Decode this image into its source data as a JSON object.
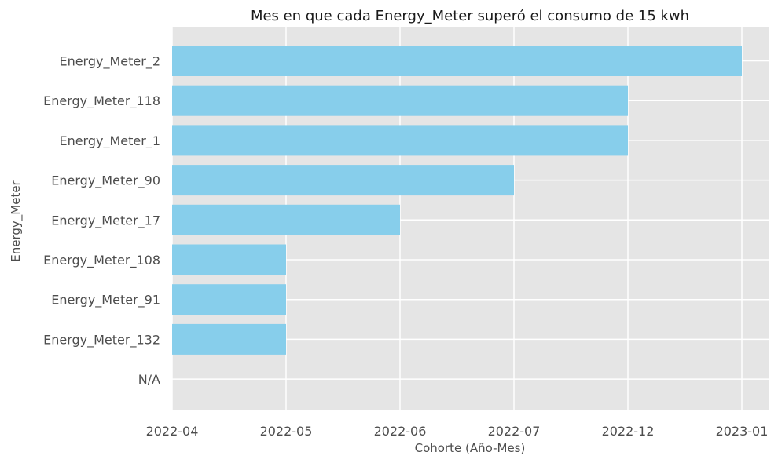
{
  "chart_data": {
    "type": "bar",
    "orientation": "horizontal",
    "title": "Mes en que cada Energy_Meter superó el consumo de 15 kwh",
    "xlabel": "Cohorte (Año-Mes)",
    "ylabel": "Energy_Meter",
    "x_ticks": [
      "2022-04",
      "2022-05",
      "2022-06",
      "2022-07",
      "2022-12",
      "2023-01"
    ],
    "categories": [
      "Energy_Meter_2",
      "Energy_Meter_118",
      "Energy_Meter_1",
      "Energy_Meter_90",
      "Energy_Meter_17",
      "Energy_Meter_108",
      "Energy_Meter_91",
      "Energy_Meter_132",
      "N/A"
    ],
    "values": [
      "2023-01",
      "2022-12",
      "2022-12",
      "2022-07",
      "2022-06",
      "2022-05",
      "2022-05",
      "2022-05",
      null
    ],
    "grid": true,
    "bar_color": "#87CEEB",
    "background_color": "#E5E5E5",
    "grid_color": "#FFFFFF"
  }
}
